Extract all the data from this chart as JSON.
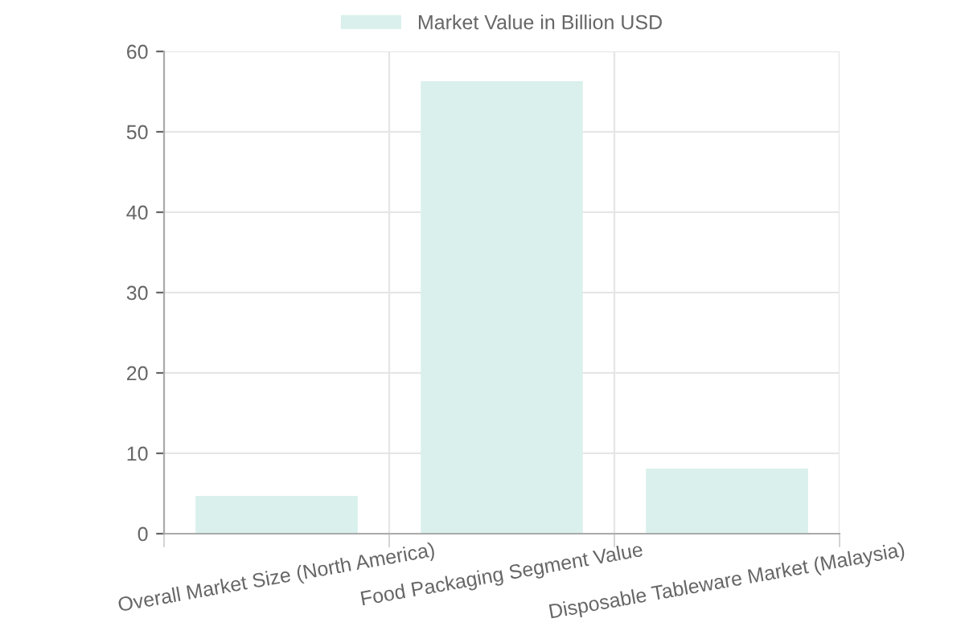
{
  "chart_data": {
    "type": "bar",
    "categories": [
      "Overall Market Size (North America)",
      "Food Packaging Segment Value",
      "Disposable Tableware Market (Malaysia)"
    ],
    "series": [
      {
        "name": "Market Value in Billion USD",
        "color": "#d9f0ec",
        "values": [
          4.7,
          56.3,
          8.1
        ]
      }
    ],
    "ylim": [
      0,
      60
    ],
    "yticks": [
      0,
      10,
      20,
      30,
      40,
      50,
      60
    ],
    "grid": true,
    "legend": "top"
  }
}
